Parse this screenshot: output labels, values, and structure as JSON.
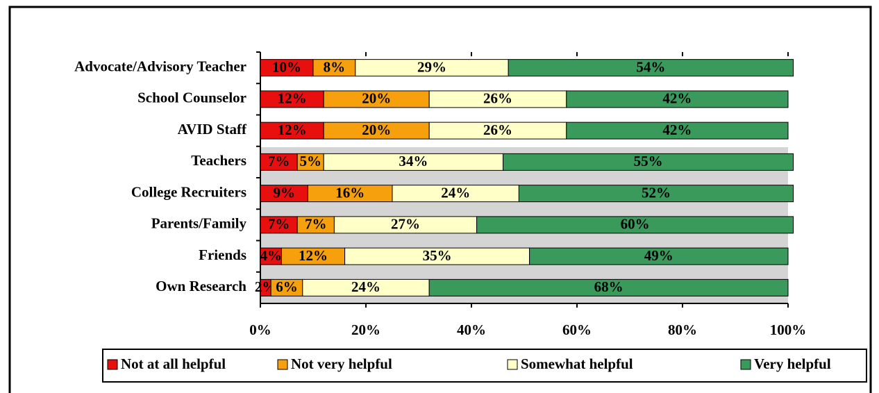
{
  "chart_data": {
    "type": "stacked-barh",
    "categories": [
      "Advocate/Advisory Teacher",
      "School Counselor",
      "AVID Staff",
      "Teachers",
      "College Recruiters",
      "Parents/Family",
      "Friends",
      "Own Research"
    ],
    "series": [
      {
        "name": "Not at all helpful",
        "color": "#e8100f",
        "values": [
          10,
          12,
          12,
          7,
          9,
          7,
          4,
          2
        ],
        "value_labels": [
          "10%",
          "12%",
          "12%",
          "7%",
          "9%",
          "7%",
          "4%",
          "2%"
        ]
      },
      {
        "name": "Not very helpful",
        "color": "#f5a00c",
        "values": [
          8,
          20,
          20,
          5,
          16,
          7,
          12,
          6
        ],
        "value_labels": [
          "8%",
          "20%",
          "20%",
          "5%",
          "16%",
          "7%",
          "12%",
          "6%"
        ]
      },
      {
        "name": "Somewhat helpful",
        "color": "#ffffc8",
        "values": [
          29,
          26,
          26,
          34,
          24,
          27,
          35,
          24
        ],
        "value_labels": [
          "29%",
          "26%",
          "26%",
          "34%",
          "24%",
          "27%",
          "35%",
          "24%"
        ]
      },
      {
        "name": "Very helpful",
        "color": "#3a9a5c",
        "values": [
          54,
          42,
          42,
          55,
          52,
          60,
          49,
          68
        ],
        "value_labels": [
          "54%",
          "42%",
          "42%",
          "55%",
          "52%",
          "60%",
          "49%",
          "68%"
        ]
      }
    ],
    "xlim": [
      0,
      100
    ],
    "xticks": [
      {
        "value": 0,
        "label": "0%"
      },
      {
        "value": 20,
        "label": "20%"
      },
      {
        "value": 40,
        "label": "40%"
      },
      {
        "value": 60,
        "label": "60%"
      },
      {
        "value": 80,
        "label": "80%"
      },
      {
        "value": 100,
        "label": "100%"
      }
    ],
    "legend": "bottom"
  }
}
